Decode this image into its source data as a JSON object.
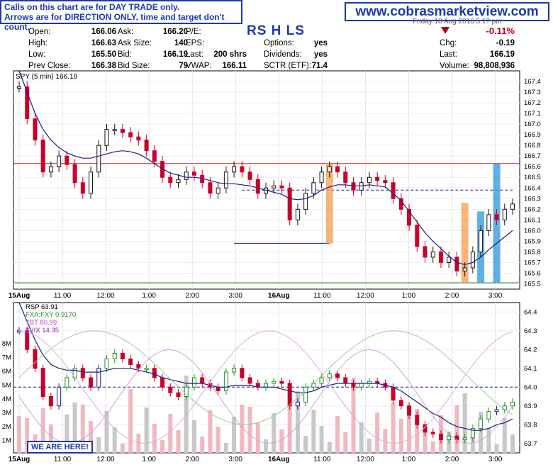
{
  "notice": {
    "line1": "Calls on this chart are for DAY TRADE only.",
    "line2": "Arrows are for DIRECTION ONLY, time and target don't count."
  },
  "website": "www.cobrasmarketview.com",
  "date_partial": "Friday 18 Aug 2016 5:1? pm",
  "quote": {
    "open_label": "Open:",
    "open": "166.06",
    "high_label": "High:",
    "high": "166.63",
    "low_label": "Low:",
    "low": "165.50",
    "prev_label": "Prev Close:",
    "prev": "166.38",
    "ask_label": "Ask:",
    "ask": "166.20",
    "asksize_label": "Ask Size:",
    "asksize": "140",
    "bid_label": "Bid:",
    "bid": "166.19",
    "bidsize_label": "Bid Size:",
    "bidsize": "79",
    "pe_label": "P/E:",
    "pe": "",
    "eps_label": "EPS:",
    "eps": "",
    "last_label": "Last:",
    "last": "200 shrs",
    "vwap_label": "VWAP:",
    "vwap": "166.11",
    "options_label": "Options:",
    "options": "yes",
    "div_label": "Dividends:",
    "div": "yes",
    "sctr_label": "SCTR (ETF):",
    "sctr": "71.4",
    "pct": "-0.11%",
    "chg_label": "Chg:",
    "chg": "-0.19",
    "last2_label": "Last:",
    "last2": "166.19",
    "volume_label": "Volume:",
    "volume": "98,808,936"
  },
  "ticker_text": "RS H LS",
  "colors": {
    "up": "#1f8f1f",
    "down": "#c8002a",
    "ma": "#1a1a8c",
    "accent": "#1b3aa6",
    "orange": "#f5a35a",
    "blue": "#3b9cdc"
  },
  "chart_data": [
    {
      "type": "line",
      "title": "SPY (5 min) 166.19",
      "ylim": [
        165.45,
        167.5
      ],
      "yticks": [
        "167.4",
        "167.3",
        "167.2",
        "167.1",
        "167.0",
        "166.9",
        "166.8",
        "166.7",
        "166.6",
        "166.5",
        "166.4",
        "166.3",
        "166.2",
        "166.1",
        "166.0",
        "165.9",
        "165.8",
        "165.7",
        "165.6",
        "165.5"
      ],
      "xticks": [
        "15Aug",
        "11:00",
        "12:00",
        "1:00",
        "2:00",
        "3:00",
        "16Aug",
        "11:00",
        "12:00",
        "1:00",
        "2:00",
        "3:00"
      ],
      "series": [
        {
          "values": [
            167.35,
            167.05,
            166.85,
            166.55,
            166.6,
            166.7,
            166.62,
            166.45,
            166.35,
            166.55,
            166.8,
            166.95,
            166.95,
            166.92,
            166.88,
            166.85,
            166.75,
            166.65,
            166.5,
            166.45,
            166.48,
            166.55,
            166.52,
            166.45,
            166.35,
            166.4,
            166.55,
            166.6,
            166.55,
            166.48,
            166.35,
            166.4,
            166.42,
            166.4,
            166.1,
            166.2,
            166.35,
            166.45,
            166.55,
            166.6,
            166.55,
            166.45,
            166.38,
            166.45,
            166.5,
            166.47,
            166.45,
            166.3,
            166.2,
            166.05,
            165.85,
            165.75,
            165.8,
            165.7,
            165.75,
            165.62,
            165.65,
            165.8,
            166.0,
            166.15,
            166.1,
            166.2,
            166.25
          ]
        },
        {
          "name": "MA",
          "values": [
            167.5,
            167.3,
            167.1,
            166.95,
            166.85,
            166.78,
            166.73,
            166.7,
            166.68,
            166.68,
            166.7,
            166.72,
            166.74,
            166.75,
            166.74,
            166.72,
            166.68,
            166.63,
            166.58,
            166.54,
            166.52,
            166.5,
            166.5,
            166.49,
            166.47,
            166.45,
            166.44,
            166.44,
            166.43,
            166.42,
            166.4,
            166.38,
            166.36,
            166.34,
            166.3,
            166.29,
            166.3,
            166.33,
            166.38,
            166.41,
            166.43,
            166.43,
            166.42,
            166.42,
            166.43,
            166.42,
            166.41,
            166.35,
            166.28,
            166.18,
            166.08,
            165.98,
            165.9,
            165.83,
            165.76,
            165.7,
            165.68,
            165.7,
            165.75,
            165.82,
            165.88,
            165.94,
            166.0
          ]
        }
      ],
      "reference_lines": [
        166.63,
        165.51,
        166.38,
        165.88
      ],
      "highlight_bars": [
        {
          "x_index": 39,
          "color": "orange",
          "from": 165.88,
          "to": 166.63
        },
        {
          "x_index": 56,
          "color": "orange",
          "from": 165.51,
          "to": 166.26
        },
        {
          "x_index": 58,
          "color": "blue",
          "from": 165.51,
          "to": 166.18
        },
        {
          "x_index": 60,
          "color": "blue",
          "from": 165.51,
          "to": 166.63
        }
      ]
    },
    {
      "type": "line",
      "title": "RSP 63.91",
      "legend": [
        "RSP 63.91",
        "FXA:FXY 0.9170",
        "TBT 80.99",
        "$VIX 14.35"
      ],
      "ylim": [
        63.65,
        64.45
      ],
      "yticks": [
        "64.4",
        "64.3",
        "64.2",
        "64.1",
        "64.0",
        "63.9",
        "63.8",
        "63.7"
      ],
      "volume_ticks": [
        "8M",
        "7M",
        "6M",
        "5M",
        "4M",
        "3M",
        "2M",
        "1M"
      ],
      "xticks": [
        "15Aug",
        "11:00",
        "12:00",
        "1:00",
        "2:00",
        "3:00",
        "16Aug",
        "11:00",
        "12:00",
        "1:00",
        "2:00",
        "3:00"
      ],
      "series": [
        {
          "name": "RSP",
          "values": [
            64.3,
            64.2,
            64.1,
            63.95,
            63.9,
            64.0,
            64.05,
            64.1,
            64.05,
            64.0,
            64.1,
            64.15,
            64.18,
            64.15,
            64.12,
            64.1,
            64.1,
            64.05,
            64.0,
            63.97,
            63.95,
            64.0,
            64.05,
            64.02,
            64.0,
            63.98,
            64.08,
            64.1,
            64.05,
            64.02,
            64.0,
            64.02,
            64.03,
            64.02,
            63.9,
            63.92,
            64.0,
            64.02,
            64.05,
            64.07,
            64.05,
            64.02,
            64.0,
            64.02,
            64.03,
            64.02,
            64.0,
            63.93,
            63.9,
            63.85,
            63.8,
            63.76,
            63.75,
            63.72,
            63.74,
            63.72,
            63.73,
            63.78,
            63.83,
            63.87,
            63.88,
            63.9,
            63.92
          ]
        },
        {
          "name": "MA",
          "values": [
            64.45,
            64.35,
            64.25,
            64.17,
            64.12,
            64.1,
            64.09,
            64.09,
            64.08,
            64.08,
            64.08,
            64.09,
            64.1,
            64.1,
            64.1,
            64.09,
            64.08,
            64.07,
            64.05,
            64.04,
            64.03,
            64.02,
            64.02,
            64.02,
            64.01,
            64.0,
            64.0,
            64.01,
            64.01,
            64.01,
            64.0,
            64.0,
            64.0,
            63.99,
            63.98,
            63.97,
            63.97,
            63.98,
            64.0,
            64.01,
            64.02,
            64.02,
            64.02,
            64.02,
            64.02,
            64.02,
            64.01,
            64.0,
            63.98,
            63.95,
            63.92,
            63.89,
            63.86,
            63.84,
            63.81,
            63.79,
            63.78,
            63.77,
            63.77,
            63.78,
            63.8,
            63.81,
            63.83
          ]
        }
      ],
      "reference_lines": [
        64.0
      ]
    }
  ],
  "here_label": "WE ARE HERE!"
}
